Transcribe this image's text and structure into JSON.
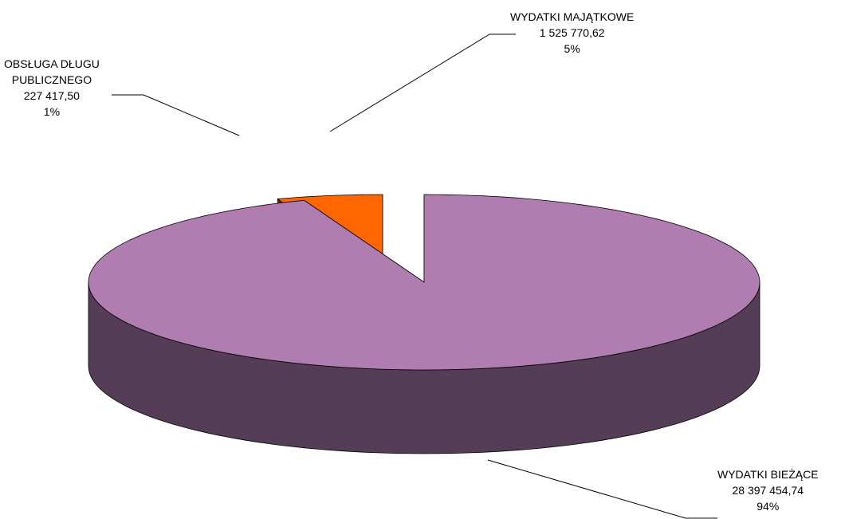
{
  "chart_data": {
    "type": "pie",
    "style": "3d-exploded",
    "legend": "none",
    "slices": [
      {
        "name": "WYDATKI BIEŻĄCE",
        "value_label": "28 397 454,74",
        "value": 28397454.74,
        "percent_label": "94%",
        "top_color": "#b07db0",
        "side_color": "#553d58"
      },
      {
        "name_lines": [
          "OBSŁUGA DŁUGU",
          "PUBLICZNEGO"
        ],
        "value_label": "227 417,50",
        "value": 227417.5,
        "percent_label": "1%",
        "top_color": "#99cc00",
        "side_color": "#4d6605"
      },
      {
        "name": "WYDATKI MAJĄTKOWE",
        "value_label": "1 525 770,62",
        "value": 1525770.62,
        "percent_label": "5%",
        "top_color": "#ff6600",
        "side_color": "#7f3300"
      }
    ]
  }
}
